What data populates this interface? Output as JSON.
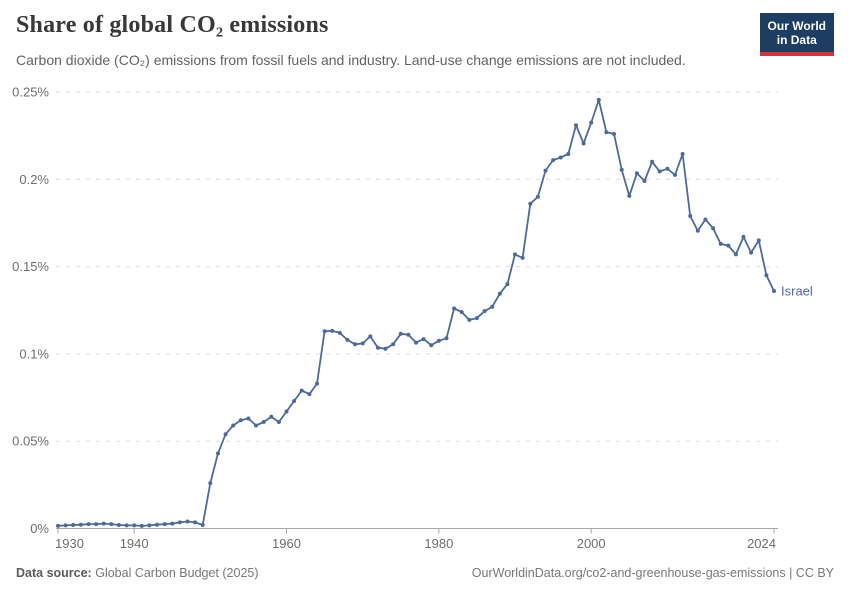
{
  "header": {
    "title": "Share of global CO₂ emissions",
    "subtitle": "Carbon dioxide (CO₂) emissions from fossil fuels and industry. Land-use change emissions are not included.",
    "logo": {
      "line1": "Our World",
      "line2": "in Data"
    }
  },
  "chart_data": {
    "type": "line",
    "title": "Share of global CO₂ emissions",
    "xlabel": "",
    "ylabel": "",
    "xlim": [
      1930,
      2024
    ],
    "ylim": [
      0,
      0.25
    ],
    "grid": "horizontal-dashed",
    "legend_position": "end-of-line-label",
    "x_ticks": [
      1930,
      1940,
      1960,
      1980,
      2000,
      2024
    ],
    "y_ticks": [
      {
        "value": 0,
        "label": "0%"
      },
      {
        "value": 0.05,
        "label": "0.05%"
      },
      {
        "value": 0.1,
        "label": "0.1%"
      },
      {
        "value": 0.15,
        "label": "0.15%"
      },
      {
        "value": 0.2,
        "label": "0.2%"
      },
      {
        "value": 0.25,
        "label": "0.25%"
      }
    ],
    "series": [
      {
        "name": "Israel",
        "color": "#4c6a9c",
        "years": [
          1930,
          1931,
          1932,
          1933,
          1934,
          1935,
          1936,
          1937,
          1938,
          1939,
          1940,
          1941,
          1942,
          1943,
          1944,
          1945,
          1946,
          1947,
          1948,
          1949,
          1950,
          1951,
          1952,
          1953,
          1954,
          1955,
          1956,
          1957,
          1958,
          1959,
          1960,
          1961,
          1962,
          1963,
          1964,
          1965,
          1966,
          1967,
          1968,
          1969,
          1970,
          1971,
          1972,
          1973,
          1974,
          1975,
          1976,
          1977,
          1978,
          1979,
          1980,
          1981,
          1982,
          1983,
          1984,
          1985,
          1986,
          1987,
          1988,
          1989,
          1990,
          1991,
          1992,
          1993,
          1994,
          1995,
          1996,
          1997,
          1998,
          1999,
          2000,
          2001,
          2002,
          2003,
          2004,
          2005,
          2006,
          2007,
          2008,
          2009,
          2010,
          2011,
          2012,
          2013,
          2014,
          2015,
          2016,
          2017,
          2018,
          2019,
          2020,
          2021,
          2022,
          2023,
          2024
        ],
        "values": [
          0.0015,
          0.0018,
          0.002,
          0.0022,
          0.0025,
          0.0025,
          0.0028,
          0.0025,
          0.002,
          0.0018,
          0.0018,
          0.0015,
          0.0018,
          0.0022,
          0.0025,
          0.0028,
          0.0035,
          0.004,
          0.0035,
          0.002,
          0.026,
          0.043,
          0.054,
          0.059,
          0.062,
          0.063,
          0.059,
          0.061,
          0.064,
          0.061,
          0.067,
          0.073,
          0.079,
          0.077,
          0.083,
          0.113,
          0.1132,
          0.112,
          0.108,
          0.1055,
          0.106,
          0.11,
          0.1035,
          0.103,
          0.1055,
          0.1115,
          0.111,
          0.1065,
          0.1085,
          0.105,
          0.1075,
          0.109,
          0.126,
          0.124,
          0.1195,
          0.1205,
          0.1245,
          0.127,
          0.1345,
          0.14,
          0.157,
          0.155,
          0.186,
          0.19,
          0.205,
          0.211,
          0.2125,
          0.2145,
          0.231,
          0.2205,
          0.2325,
          0.2455,
          0.227,
          0.226,
          0.2055,
          0.1905,
          0.2035,
          0.199,
          0.21,
          0.2045,
          0.206,
          0.2025,
          0.2145,
          0.179,
          0.1705,
          0.177,
          0.172,
          0.163,
          0.162,
          0.157,
          0.167,
          0.158,
          0.165,
          0.145,
          0.136
        ]
      }
    ],
    "colors": {
      "line": "#4c6a9c",
      "gridline": "#dcdcdc",
      "axis": "#a8a8a8",
      "tick_text": "#6e6e6e"
    }
  },
  "footer": {
    "source_label": "Data source:",
    "source_value": "Global Carbon Budget (2025)",
    "right_text": "OurWorldinData.org/co2-and-greenhouse-gas-emissions | CC BY"
  }
}
